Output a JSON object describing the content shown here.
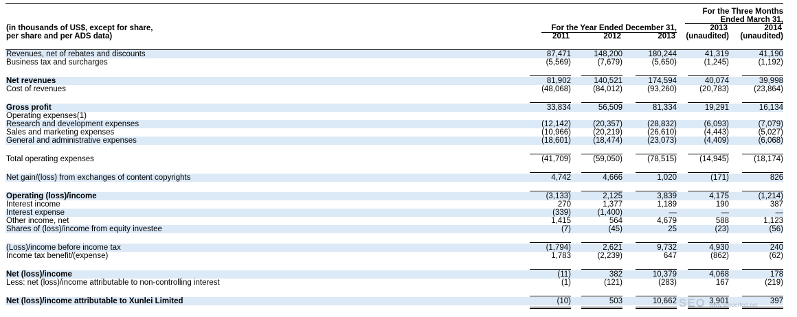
{
  "header": {
    "caption_line1": "(in thousands of US$, except for share,",
    "caption_line2": "per share and per ADS data)",
    "year_group": "For the Year Ended December 31,",
    "quarter_group_line1": "For the Three Months",
    "quarter_group_line2": "Ended March 31,",
    "columns": [
      {
        "year": "2011",
        "sub": ""
      },
      {
        "year": "2012",
        "sub": ""
      },
      {
        "year": "2013",
        "sub": ""
      },
      {
        "year": "2013",
        "sub": "(unaudited)"
      },
      {
        "year": "2014",
        "sub": "(unaudited)"
      }
    ]
  },
  "rows": [
    {
      "label": "Revenues, net of rebates and discounts",
      "bold": false,
      "values": [
        "87,471",
        "148,200",
        "180,244",
        "41,319",
        "41,190"
      ]
    },
    {
      "label": "Business tax and surcharges",
      "bold": false,
      "values": [
        "(5,569)",
        "(7,679)",
        "(5,650)",
        "(1,245)",
        "(1,192)"
      ]
    },
    {
      "label": "Net revenues",
      "bold": true,
      "values": [
        "81,902",
        "140,521",
        "174,594",
        "40,074",
        "39,998"
      ]
    },
    {
      "label": "Cost of revenues",
      "bold": false,
      "values": [
        "(48,068)",
        "(84,012)",
        "(93,260)",
        "(20,783)",
        "(23,864)"
      ]
    },
    {
      "label": "Gross profit",
      "bold": true,
      "values": [
        "33,834",
        "56,509",
        "81,334",
        "19,291",
        "16,134"
      ]
    },
    {
      "label": "Operating expenses(1)",
      "bold": false,
      "values": [
        "",
        "",
        "",
        "",
        ""
      ]
    },
    {
      "label": "Research and development expenses",
      "bold": false,
      "values": [
        "(12,142)",
        "(20,357)",
        "(28,832)",
        "(6,093)",
        "(7,079)"
      ]
    },
    {
      "label": "Sales and marketing expenses",
      "bold": false,
      "values": [
        "(10,966)",
        "(20,219)",
        "(26,610)",
        "(4,443)",
        "(5,027)"
      ]
    },
    {
      "label": "General and administrative expenses",
      "bold": false,
      "values": [
        "(18,601)",
        "(18,474)",
        "(23,073)",
        "(4,409)",
        "(6,068)"
      ]
    },
    {
      "label": "Total operating expenses",
      "bold": false,
      "values": [
        "(41,709)",
        "(59,050)",
        "(78,515)",
        "(14,945)",
        "(18,174)"
      ]
    },
    {
      "label": "Net gain/(loss) from exchanges of content copyrights",
      "bold": false,
      "values": [
        "4,742",
        "4,666",
        "1,020",
        "(171)",
        "826"
      ]
    },
    {
      "label": "Operating (loss)/income",
      "bold": true,
      "values": [
        "(3,133)",
        "2,125",
        "3,839",
        "4,175",
        "(1,214)"
      ]
    },
    {
      "label": "Interest income",
      "bold": false,
      "values": [
        "270",
        "1,377",
        "1,189",
        "190",
        "387"
      ]
    },
    {
      "label": "Interest expense",
      "bold": false,
      "values": [
        "(339)",
        "(1,400)",
        "—",
        "—",
        "—"
      ]
    },
    {
      "label": "Other income, net",
      "bold": false,
      "values": [
        "1,415",
        "564",
        "4,679",
        "588",
        "1,123"
      ]
    },
    {
      "label": "Shares of (loss)/income from equity investee",
      "bold": false,
      "values": [
        "(7)",
        "(45)",
        "25",
        "(23)",
        "(56)"
      ]
    },
    {
      "label": "(Loss)/income before income tax",
      "bold": false,
      "values": [
        "(1,794)",
        "2,621",
        "9,732",
        "4,930",
        "240"
      ]
    },
    {
      "label": "Income tax benefit/(expense)",
      "bold": false,
      "values": [
        "1,783",
        "(2,239)",
        "647",
        "(862)",
        "(62)"
      ]
    },
    {
      "label": "Net (loss)/income",
      "bold": true,
      "values": [
        "(11)",
        "382",
        "10,379",
        "4,068",
        "178"
      ]
    },
    {
      "label": "Less: net (loss)/income attributable to non-controlling interest",
      "bold": false,
      "values": [
        "(1)",
        "(121)",
        "(283)",
        "167",
        "(219)"
      ]
    },
    {
      "label": "Net (loss)/income attributable to Xunlei Limited",
      "bold": true,
      "values": [
        "(10)",
        "503",
        "10,662",
        "3,901",
        "397"
      ]
    }
  ],
  "watermark": {
    "main": "SEO",
    "sub": "www.seoperfect.net"
  }
}
